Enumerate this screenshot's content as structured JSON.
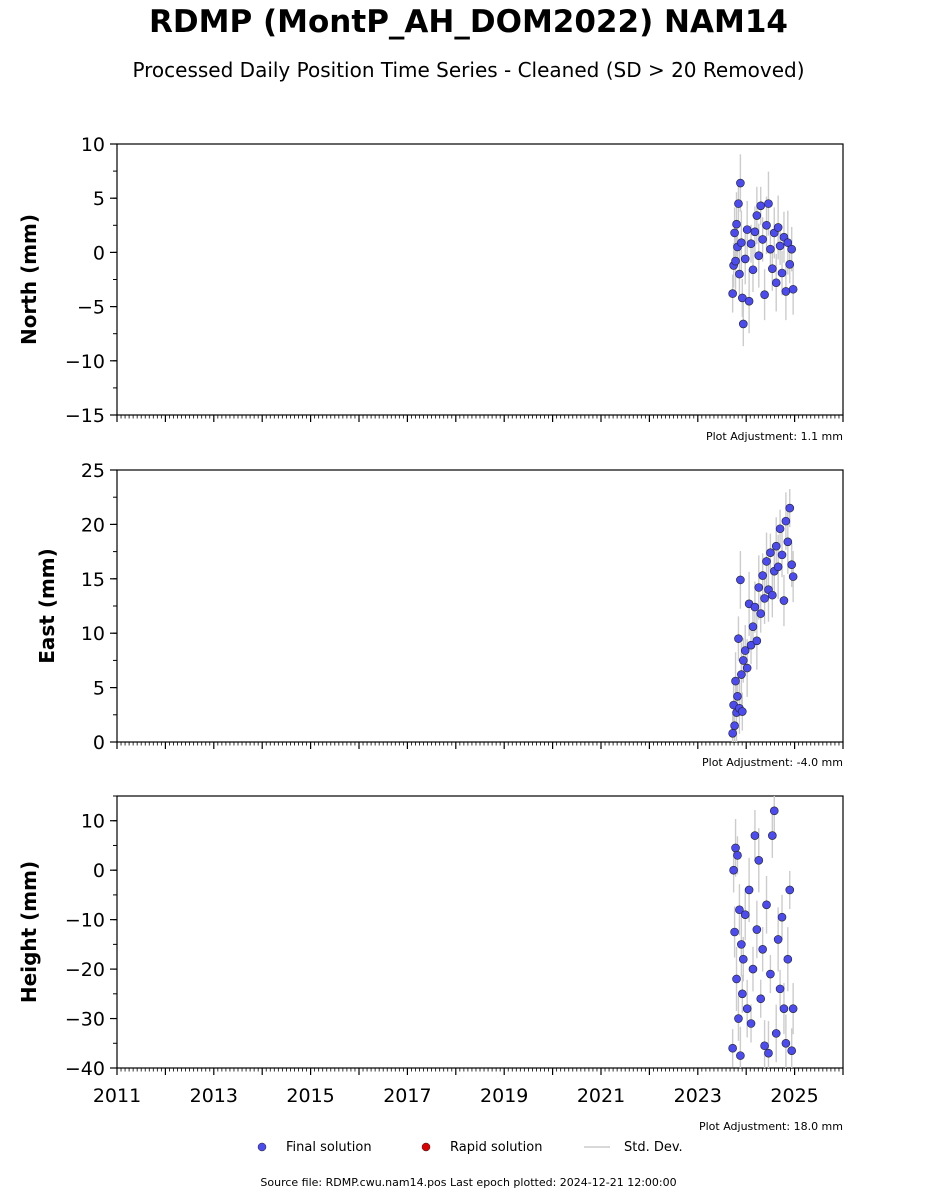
{
  "title": "RDMP (MontP_AH_DOM2022) NAM14",
  "subtitle": "Processed Daily Position Time Series - Cleaned (SD > 20 Removed)",
  "source_text": "Source file: RDMP.cwu.nam14.pos  Last epoch plotted: 2024-12-21 12:00:00",
  "legend": [
    {
      "label": "Final solution",
      "color": "#4b4bf0",
      "kind": "dot"
    },
    {
      "label": "Rapid solution",
      "color": "#dd0000",
      "kind": "dot"
    },
    {
      "label": "Std. Dev.",
      "color": "#cccccc",
      "kind": "line"
    }
  ],
  "chart_data": [
    {
      "type": "scatter",
      "ylabel": "North (mm)",
      "ylim": [
        -15,
        10
      ],
      "yticks": [
        -15,
        -10,
        -5,
        0,
        5,
        10
      ],
      "xlim": [
        2011,
        2026
      ],
      "adjustment": "Plot Adjustment: 1.1 mm",
      "series": [
        {
          "name": "Final solution",
          "x": [
            2023.72,
            2023.74,
            2023.76,
            2023.78,
            2023.8,
            2023.82,
            2023.84,
            2023.86,
            2023.88,
            2023.9,
            2023.92,
            2023.94,
            2023.98,
            2024.02,
            2024.06,
            2024.1,
            2024.14,
            2024.18,
            2024.22,
            2024.26,
            2024.3,
            2024.34,
            2024.38,
            2024.42,
            2024.46,
            2024.5,
            2024.54,
            2024.58,
            2024.62,
            2024.66,
            2024.7,
            2024.74,
            2024.78,
            2024.82,
            2024.86,
            2024.9,
            2024.94,
            2024.97
          ],
          "y": [
            -3.8,
            -1.2,
            1.8,
            -0.8,
            2.6,
            0.5,
            4.5,
            -2.0,
            6.4,
            0.9,
            -4.2,
            -6.6,
            -0.6,
            2.1,
            -4.5,
            0.8,
            -1.6,
            1.9,
            3.4,
            -0.3,
            4.3,
            1.2,
            -3.9,
            2.5,
            4.5,
            0.3,
            -1.5,
            1.8,
            -2.8,
            2.3,
            0.6,
            -1.9,
            1.4,
            -3.6,
            0.9,
            -1.1,
            0.3,
            -3.4
          ]
        }
      ]
    },
    {
      "type": "scatter",
      "ylabel": "East (mm)",
      "ylim": [
        0,
        25
      ],
      "yticks": [
        0,
        5,
        10,
        15,
        20,
        25
      ],
      "xlim": [
        2011,
        2026
      ],
      "adjustment": "Plot Adjustment: -4.0 mm",
      "series": [
        {
          "name": "Final solution",
          "x": [
            2023.72,
            2023.74,
            2023.76,
            2023.78,
            2023.8,
            2023.82,
            2023.84,
            2023.86,
            2023.88,
            2023.9,
            2023.92,
            2023.94,
            2023.98,
            2024.02,
            2024.06,
            2024.1,
            2024.14,
            2024.18,
            2024.22,
            2024.26,
            2024.3,
            2024.34,
            2024.38,
            2024.42,
            2024.46,
            2024.5,
            2024.54,
            2024.58,
            2024.62,
            2024.66,
            2024.7,
            2024.74,
            2024.78,
            2024.82,
            2024.86,
            2024.9,
            2024.94,
            2024.97
          ],
          "y": [
            0.8,
            3.4,
            1.5,
            5.6,
            2.7,
            4.2,
            9.5,
            3.1,
            14.9,
            6.2,
            2.8,
            7.5,
            8.4,
            6.8,
            12.7,
            8.9,
            10.6,
            12.4,
            9.3,
            14.2,
            11.8,
            15.3,
            13.2,
            16.6,
            14.0,
            17.4,
            13.5,
            15.7,
            18.0,
            16.1,
            19.6,
            17.2,
            13.0,
            20.3,
            18.4,
            21.5,
            16.3,
            15.2
          ]
        }
      ]
    },
    {
      "type": "scatter",
      "ylabel": "Height (mm)",
      "ylim": [
        -40,
        15
      ],
      "yticks": [
        -40,
        -30,
        -20,
        -10,
        0,
        10
      ],
      "xlim": [
        2011,
        2026
      ],
      "xticks": [
        2011,
        2013,
        2015,
        2017,
        2019,
        2021,
        2023,
        2025
      ],
      "adjustment": "Plot Adjustment: 18.0 mm",
      "series": [
        {
          "name": "Final solution",
          "x": [
            2023.72,
            2023.74,
            2023.76,
            2023.78,
            2023.8,
            2023.82,
            2023.84,
            2023.86,
            2023.88,
            2023.9,
            2023.92,
            2023.94,
            2023.98,
            2024.02,
            2024.06,
            2024.1,
            2024.14,
            2024.18,
            2024.22,
            2024.26,
            2024.3,
            2024.34,
            2024.38,
            2024.42,
            2024.46,
            2024.5,
            2024.54,
            2024.58,
            2024.62,
            2024.66,
            2024.7,
            2024.74,
            2024.78,
            2024.82,
            2024.86,
            2024.9,
            2024.94,
            2024.97
          ],
          "y": [
            -36.0,
            0.0,
            -12.5,
            4.5,
            -22.0,
            3.0,
            -30.0,
            -8.0,
            -37.5,
            -15.0,
            -25.0,
            -18.0,
            -9.0,
            -28.0,
            -4.0,
            -31.0,
            -20.0,
            7.0,
            -12.0,
            2.0,
            -26.0,
            -16.0,
            -35.5,
            -7.0,
            -37.0,
            -21.0,
            7.0,
            12.0,
            -33.0,
            -14.0,
            -24.0,
            -9.5,
            -28.0,
            -35.0,
            -18.0,
            -4.0,
            -36.5,
            -28.0
          ]
        }
      ]
    }
  ]
}
